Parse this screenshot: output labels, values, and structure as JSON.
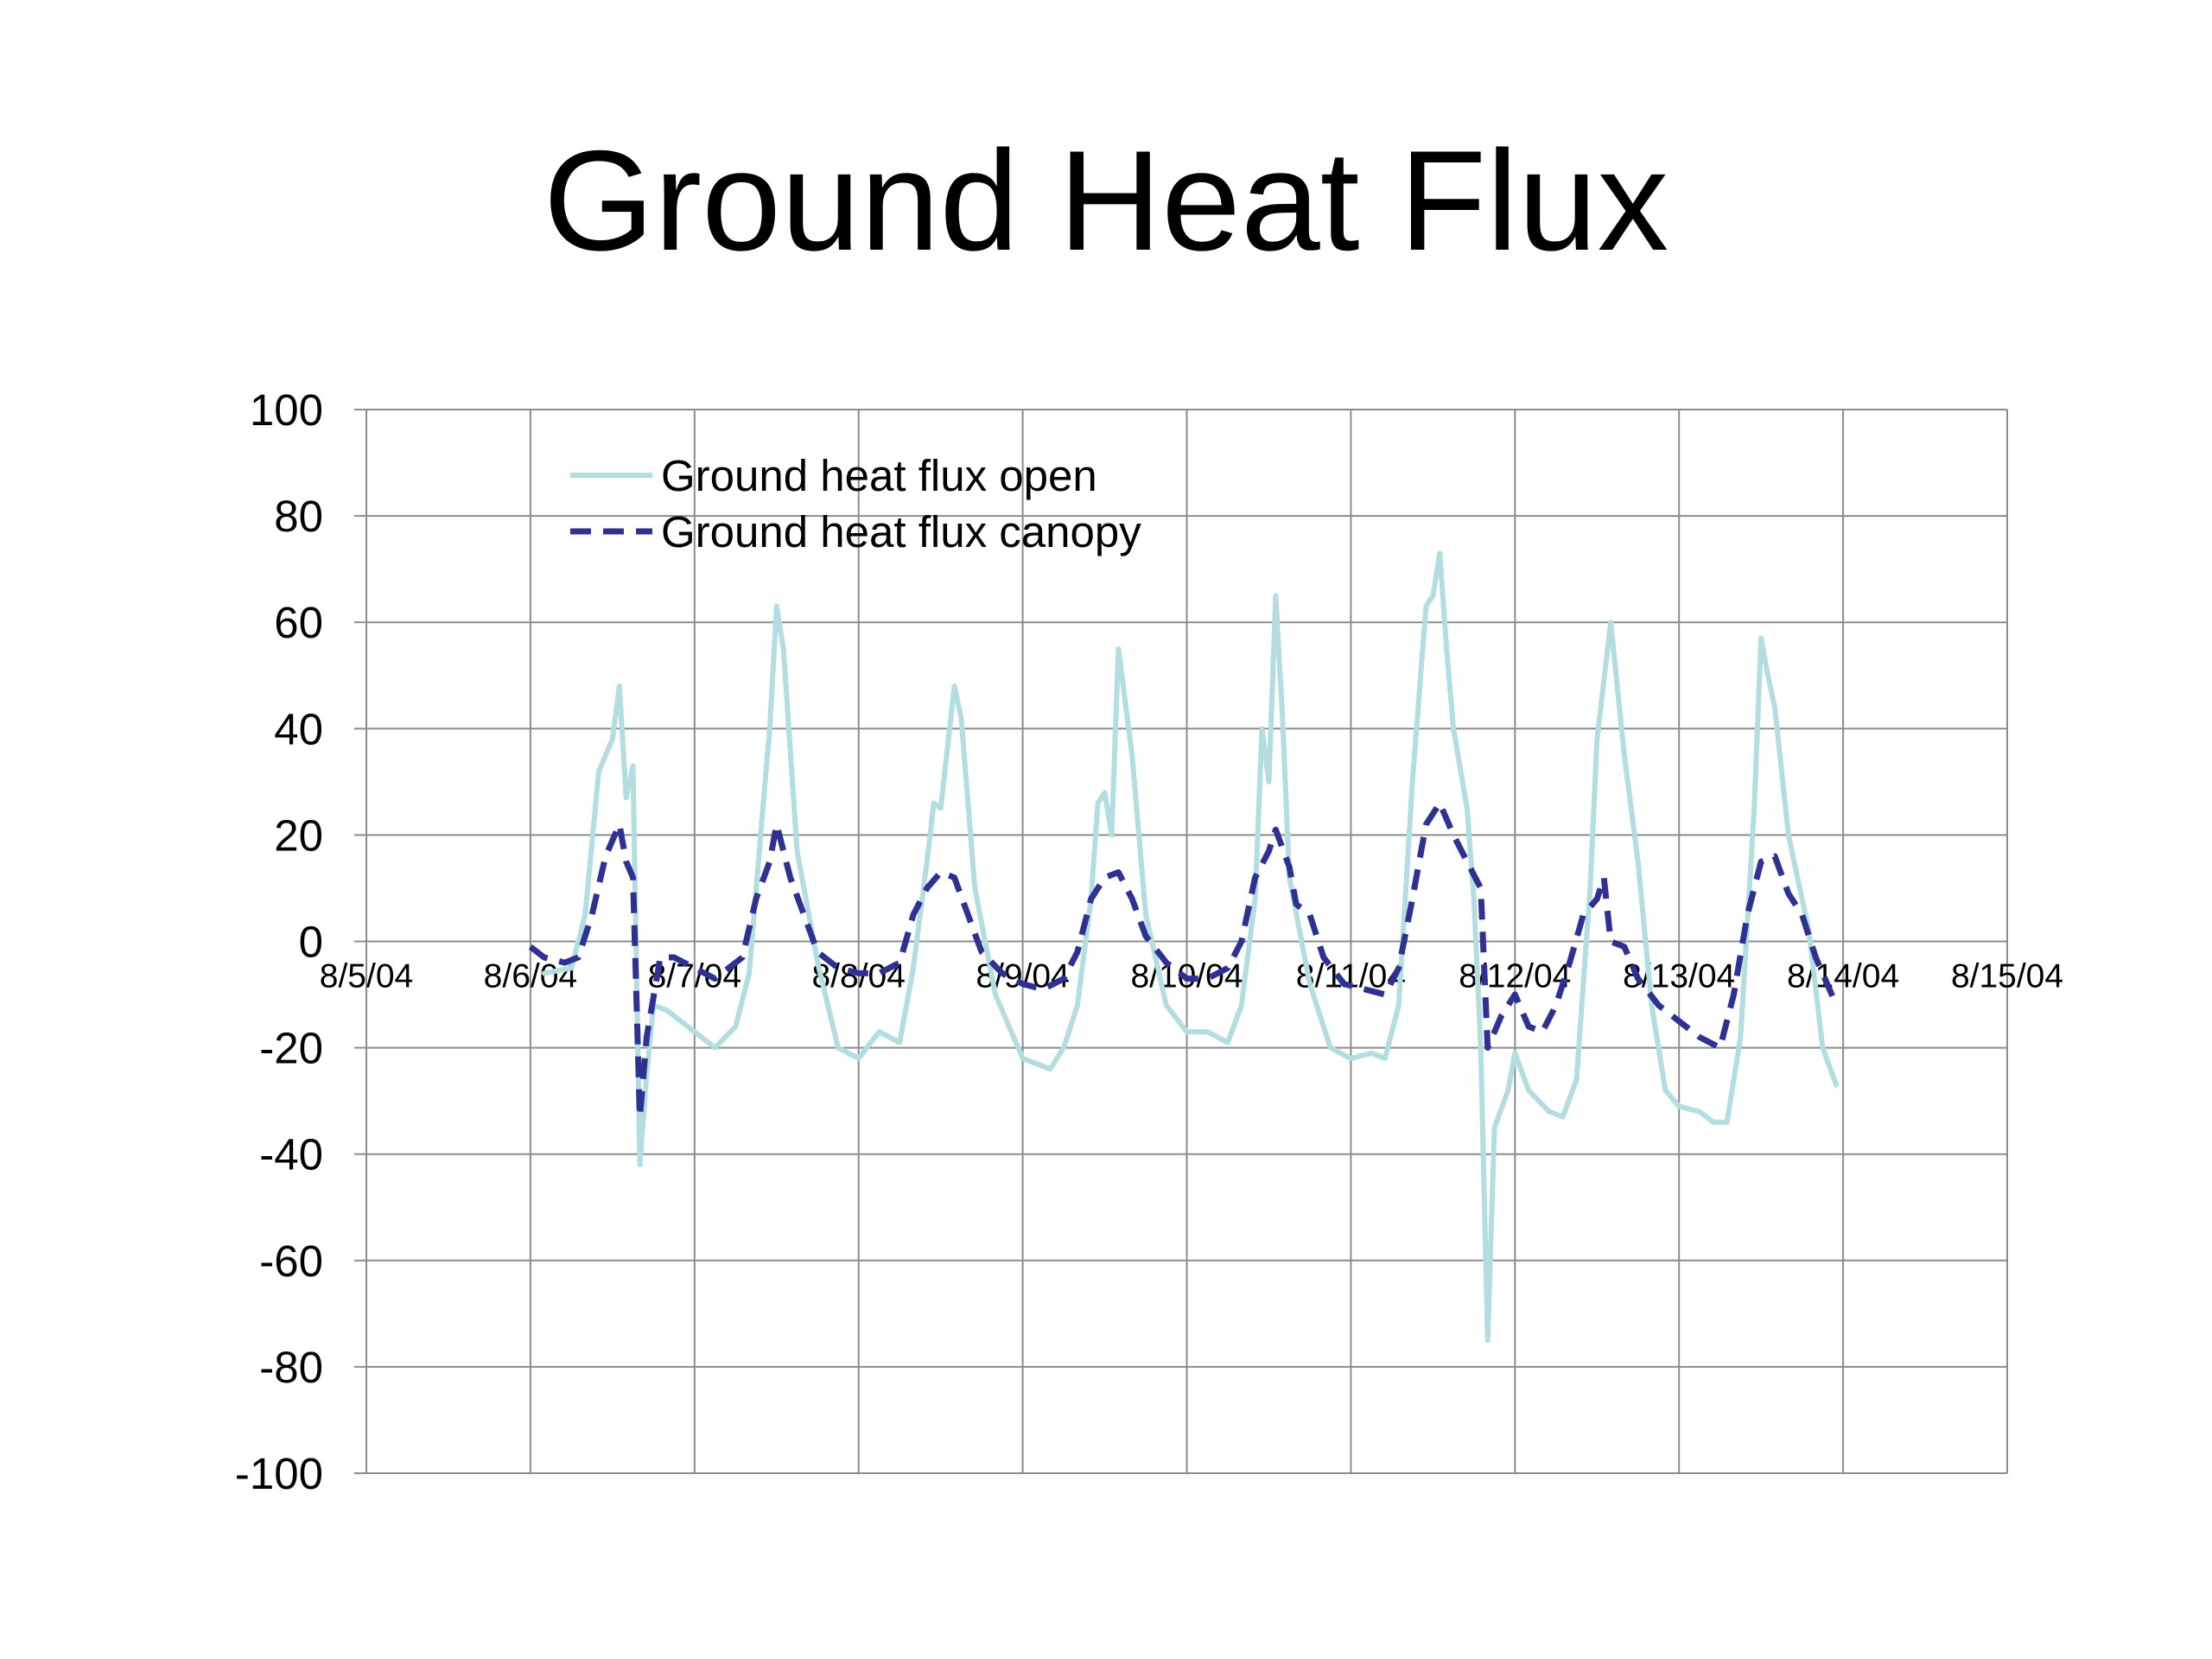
{
  "chart_data": {
    "type": "line",
    "title": "Ground Heat Flux",
    "xlabel": "",
    "ylabel": "",
    "x_tick_labels": [
      "8/5/04",
      "8/6/04",
      "8/7/04",
      "8/8/04",
      "8/9/04",
      "8/10/04",
      "8/11/04",
      "8/12/04",
      "8/13/04",
      "8/14/04",
      "8/15/04"
    ],
    "x_range": [
      "8/5/04",
      "8/15/04"
    ],
    "ylim": [
      -100,
      100
    ],
    "y_ticks": [
      "100",
      "80",
      "60",
      "40",
      "20",
      "0",
      "-20",
      "-40",
      "-60",
      "-80",
      "-100"
    ],
    "grid": true,
    "legend_position": "top-left",
    "colors": {
      "open": "#b3dde0",
      "canopy": "#2e3192",
      "grid": "#8c8c8c"
    },
    "series": [
      {
        "name": "Ground heat flux open",
        "style": "solid",
        "points": [
          [
            "8/6/04 02:00",
            -6
          ],
          [
            "8/6/04 06:00",
            -5
          ],
          [
            "8/6/04 08:00",
            5
          ],
          [
            "8/6/04 10:00",
            32
          ],
          [
            "8/6/04 12:00",
            38
          ],
          [
            "8/6/04 13:00",
            48
          ],
          [
            "8/6/04 14:00",
            27
          ],
          [
            "8/6/04 15:00",
            33
          ],
          [
            "8/6/04 16:00",
            -42
          ],
          [
            "8/6/04 17:00",
            -25
          ],
          [
            "8/6/04 18:00",
            -12
          ],
          [
            "8/6/04 20:00",
            -13
          ],
          [
            "8/7/04 00:00",
            -17
          ],
          [
            "8/7/04 03:00",
            -20
          ],
          [
            "8/7/04 06:00",
            -16
          ],
          [
            "8/7/04 08:00",
            -6
          ],
          [
            "8/7/04 10:00",
            25
          ],
          [
            "8/7/04 11:00",
            40
          ],
          [
            "8/7/04 12:00",
            63
          ],
          [
            "8/7/04 13:00",
            55
          ],
          [
            "8/7/04 15:00",
            17
          ],
          [
            "8/7/04 18:00",
            -4
          ],
          [
            "8/7/04 21:00",
            -20
          ],
          [
            "8/8/04 00:00",
            -22
          ],
          [
            "8/8/04 03:00",
            -17
          ],
          [
            "8/8/04 06:00",
            -19
          ],
          [
            "8/8/04 08:00",
            -5
          ],
          [
            "8/8/04 10:00",
            15
          ],
          [
            "8/8/04 11:00",
            26
          ],
          [
            "8/8/04 12:00",
            25
          ],
          [
            "8/8/04 14:00",
            48
          ],
          [
            "8/8/04 15:00",
            42
          ],
          [
            "8/8/04 17:00",
            10
          ],
          [
            "8/8/04 20:00",
            -10
          ],
          [
            "8/9/04 00:00",
            -22
          ],
          [
            "8/9/04 04:00",
            -24
          ],
          [
            "8/9/04 06:00",
            -20
          ],
          [
            "8/9/04 08:00",
            -12
          ],
          [
            "8/9/04 10:00",
            8
          ],
          [
            "8/9/04 11:00",
            26
          ],
          [
            "8/9/04 12:00",
            28
          ],
          [
            "8/9/04 13:00",
            20
          ],
          [
            "8/9/04 14:00",
            55
          ],
          [
            "8/9/04 16:00",
            35
          ],
          [
            "8/9/04 18:00",
            5
          ],
          [
            "8/9/04 21:00",
            -12
          ],
          [
            "8/10/04 00:00",
            -17
          ],
          [
            "8/10/04 03:00",
            -17
          ],
          [
            "8/10/04 06:00",
            -19
          ],
          [
            "8/10/04 08:00",
            -12
          ],
          [
            "8/10/04 10:00",
            8
          ],
          [
            "8/10/04 11:00",
            40
          ],
          [
            "8/10/04 12:00",
            30
          ],
          [
            "8/10/04 13:00",
            65
          ],
          [
            "8/10/04 14:00",
            42
          ],
          [
            "8/10/04 15:00",
            12
          ],
          [
            "8/10/04 18:00",
            -8
          ],
          [
            "8/10/04 21:00",
            -20
          ],
          [
            "8/11/04 00:00",
            -22
          ],
          [
            "8/11/04 03:00",
            -21
          ],
          [
            "8/11/04 05:00",
            -22
          ],
          [
            "8/11/04 07:00",
            -12
          ],
          [
            "8/11/04 09:00",
            30
          ],
          [
            "8/11/04 11:00",
            63
          ],
          [
            "8/11/04 12:00",
            65
          ],
          [
            "8/11/04 13:00",
            73
          ],
          [
            "8/11/04 14:00",
            55
          ],
          [
            "8/11/04 15:00",
            40
          ],
          [
            "8/11/04 17:00",
            25
          ],
          [
            "8/11/04 18:00",
            8
          ],
          [
            "8/11/04 19:00",
            -20
          ],
          [
            "8/11/04 20:00",
            -75
          ],
          [
            "8/11/04 21:00",
            -35
          ],
          [
            "8/11/04 23:00",
            -28
          ],
          [
            "8/12/04 00:00",
            -21
          ],
          [
            "8/12/04 02:00",
            -28
          ],
          [
            "8/12/04 05:00",
            -32
          ],
          [
            "8/12/04 07:00",
            -33
          ],
          [
            "8/12/04 09:00",
            -26
          ],
          [
            "8/12/04 11:00",
            10
          ],
          [
            "8/12/04 12:00",
            38
          ],
          [
            "8/12/04 14:00",
            60
          ],
          [
            "8/12/04 16:00",
            35
          ],
          [
            "8/12/04 18:00",
            15
          ],
          [
            "8/12/04 20:00",
            -12
          ],
          [
            "8/12/04 22:00",
            -28
          ],
          [
            "8/13/04 00:00",
            -31
          ],
          [
            "8/13/04 03:00",
            -32
          ],
          [
            "8/13/04 05:00",
            -34
          ],
          [
            "8/13/04 07:00",
            -34
          ],
          [
            "8/13/04 09:00",
            -18
          ],
          [
            "8/13/04 11:00",
            25
          ],
          [
            "8/13/04 12:00",
            57
          ],
          [
            "8/13/04 13:00",
            50
          ],
          [
            "8/13/04 14:00",
            44
          ],
          [
            "8/13/04 16:00",
            20
          ],
          [
            "8/13/04 19:00",
            2
          ],
          [
            "8/13/04 21:00",
            -20
          ],
          [
            "8/13/04 23:00",
            -27
          ]
        ]
      },
      {
        "name": "Ground heat flux canopy",
        "style": "dashed",
        "points": [
          [
            "8/6/04 00:00",
            -1
          ],
          [
            "8/6/04 02:00",
            -3
          ],
          [
            "8/6/04 05:00",
            -4
          ],
          [
            "8/6/04 07:00",
            -3
          ],
          [
            "8/6/04 09:00",
            5
          ],
          [
            "8/6/04 11:00",
            16
          ],
          [
            "8/6/04 13:00",
            22
          ],
          [
            "8/6/04 14:00",
            15
          ],
          [
            "8/6/04 15:00",
            12
          ],
          [
            "8/6/04 16:00",
            -33
          ],
          [
            "8/6/04 17:00",
            -18
          ],
          [
            "8/6/04 19:00",
            -3
          ],
          [
            "8/6/04 21:00",
            -3
          ],
          [
            "8/7/04 00:00",
            -5
          ],
          [
            "8/7/04 03:00",
            -7
          ],
          [
            "8/7/04 05:00",
            -5
          ],
          [
            "8/7/04 07:00",
            -3
          ],
          [
            "8/7/04 09:00",
            8
          ],
          [
            "8/7/04 11:00",
            15
          ],
          [
            "8/7/04 12:00",
            22
          ],
          [
            "8/7/04 14:00",
            12
          ],
          [
            "8/7/04 16:00",
            5
          ],
          [
            "8/7/04 18:00",
            -2
          ],
          [
            "8/7/04 21:00",
            -5
          ],
          [
            "8/8/04 00:00",
            -6
          ],
          [
            "8/8/04 03:00",
            -6
          ],
          [
            "8/8/04 06:00",
            -4
          ],
          [
            "8/8/04 08:00",
            5
          ],
          [
            "8/8/04 10:00",
            10
          ],
          [
            "8/8/04 12:00",
            13
          ],
          [
            "8/8/04 14:00",
            12
          ],
          [
            "8/8/04 16:00",
            5
          ],
          [
            "8/8/04 18:00",
            -2
          ],
          [
            "8/8/04 21:00",
            -6
          ],
          [
            "8/9/04 00:00",
            -8
          ],
          [
            "8/9/04 03:00",
            -9
          ],
          [
            "8/9/04 06:00",
            -7
          ],
          [
            "8/9/04 08:00",
            -2
          ],
          [
            "8/9/04 10:00",
            8
          ],
          [
            "8/9/04 12:00",
            12
          ],
          [
            "8/9/04 14:00",
            13
          ],
          [
            "8/9/04 16:00",
            8
          ],
          [
            "8/9/04 18:00",
            1
          ],
          [
            "8/9/04 21:00",
            -4
          ],
          [
            "8/10/04 00:00",
            -7
          ],
          [
            "8/10/04 03:00",
            -7
          ],
          [
            "8/10/04 06:00",
            -5
          ],
          [
            "8/10/04 08:00",
            0
          ],
          [
            "8/10/04 10:00",
            12
          ],
          [
            "8/10/04 12:00",
            17
          ],
          [
            "8/10/04 13:00",
            21
          ],
          [
            "8/10/04 15:00",
            14
          ],
          [
            "8/10/04 16:00",
            7
          ],
          [
            "8/10/04 18:00",
            5
          ],
          [
            "8/10/04 20:00",
            -3
          ],
          [
            "8/10/04 23:00",
            -8
          ],
          [
            "8/11/04 02:00",
            -9
          ],
          [
            "8/11/04 05:00",
            -10
          ],
          [
            "8/11/04 07:00",
            -5
          ],
          [
            "8/11/04 09:00",
            8
          ],
          [
            "8/11/04 11:00",
            22
          ],
          [
            "8/11/04 13:00",
            26
          ],
          [
            "8/11/04 15:00",
            20
          ],
          [
            "8/11/04 17:00",
            15
          ],
          [
            "8/11/04 19:00",
            10
          ],
          [
            "8/11/04 20:00",
            -20
          ],
          [
            "8/11/04 22:00",
            -14
          ],
          [
            "8/12/04 00:00",
            -10
          ],
          [
            "8/12/04 02:00",
            -16
          ],
          [
            "8/12/04 04:00",
            -17
          ],
          [
            "8/12/04 06:00",
            -12
          ],
          [
            "8/12/04 08:00",
            -4
          ],
          [
            "8/12/04 10:00",
            5
          ],
          [
            "8/12/04 12:00",
            8
          ],
          [
            "8/12/04 13:00",
            12
          ],
          [
            "8/12/04 14:00",
            0
          ],
          [
            "8/12/04 16:00",
            -1
          ],
          [
            "8/12/04 18:00",
            -7
          ],
          [
            "8/12/04 21:00",
            -12
          ],
          [
            "8/13/04 00:00",
            -15
          ],
          [
            "8/13/04 03:00",
            -18
          ],
          [
            "8/13/04 06:00",
            -20
          ],
          [
            "8/13/04 08:00",
            -10
          ],
          [
            "8/13/04 10:00",
            5
          ],
          [
            "8/13/04 12:00",
            15
          ],
          [
            "8/13/04 14:00",
            16
          ],
          [
            "8/13/04 16:00",
            9
          ],
          [
            "8/13/04 18:00",
            5
          ],
          [
            "8/13/04 20:00",
            -3
          ],
          [
            "8/13/04 22:00",
            -9
          ],
          [
            "8/13/04 23:00",
            -12
          ]
        ]
      }
    ]
  }
}
